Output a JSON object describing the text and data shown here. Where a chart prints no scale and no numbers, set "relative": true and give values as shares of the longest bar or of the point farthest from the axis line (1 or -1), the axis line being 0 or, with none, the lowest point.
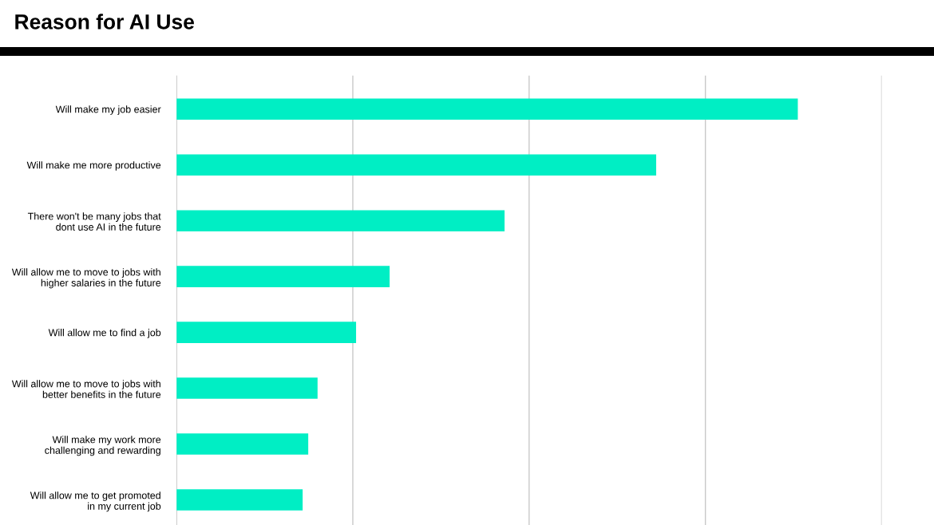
{
  "chart_data": {
    "type": "bar",
    "orientation": "horizontal",
    "relative": true,
    "title": "Reason for AI Use",
    "categories": [
      "Will make my job easier",
      "Will make me more productive",
      "There won't be many jobs that\ndont use AI in the future",
      "Will allow me to move to jobs with\nhigher salaries in the future",
      "Will allow me to find a job",
      "Will allow me to move to jobs with\nbetter benefits in the future",
      "Will make my work more\nchallenging and rewarding",
      "Will allow me to get promoted\nin my current job"
    ],
    "values": [
      1,
      0.772,
      0.528,
      0.343,
      0.289,
      0.227,
      0.212,
      0.203
    ],
    "color": "#00eec4",
    "grid": "x"
  }
}
